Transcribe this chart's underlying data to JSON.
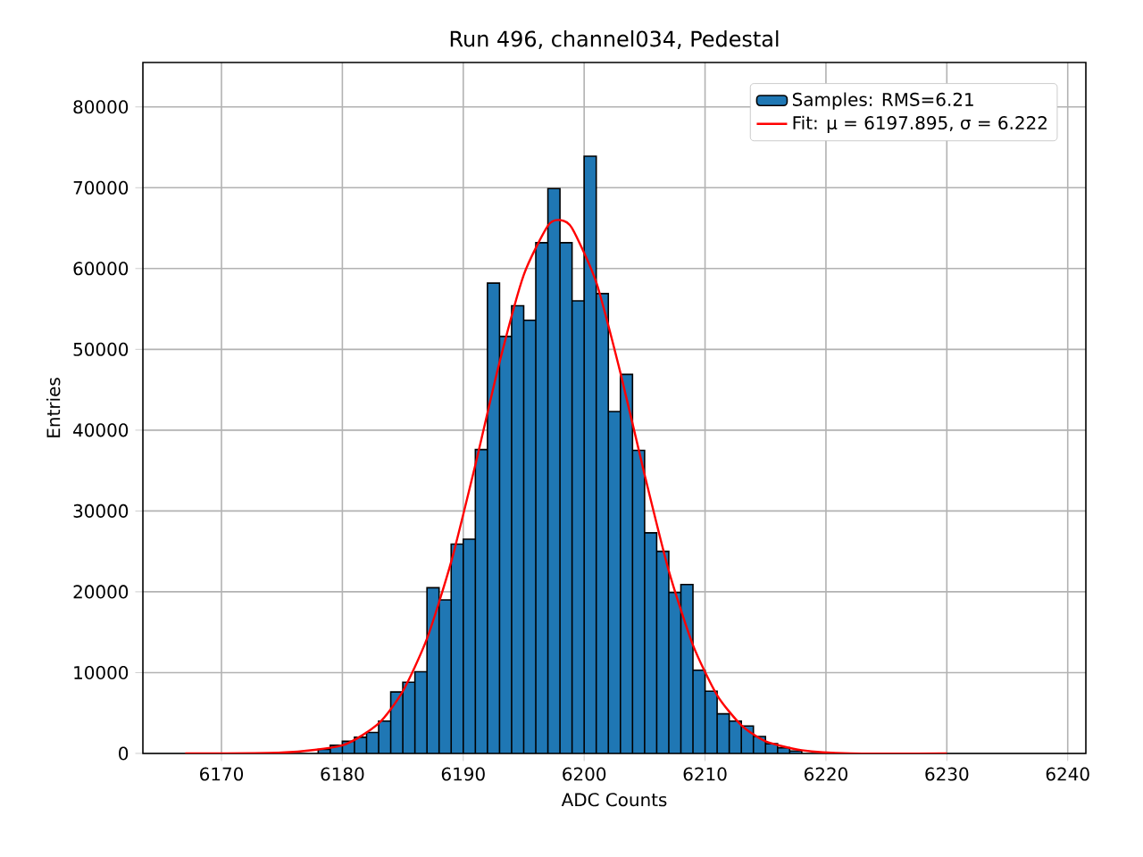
{
  "chart_data": {
    "type": "histogram",
    "title": "Run 496, channel034, Pedestal",
    "xlabel": "ADC Counts",
    "ylabel": "Entries",
    "bins": [
      6178,
      6179,
      6180,
      6181,
      6182,
      6183,
      6184,
      6185,
      6186,
      6187,
      6188,
      6189,
      6190,
      6191,
      6192,
      6193,
      6194,
      6195,
      6196,
      6197,
      6198,
      6199,
      6200,
      6201,
      6202,
      6203,
      6204,
      6205,
      6206,
      6207,
      6208,
      6209,
      6210,
      6211,
      6212,
      6213,
      6214,
      6215,
      6216,
      6217,
      6218
    ],
    "series": [
      {
        "name": "Samples: RMS=6.21",
        "color": "#1f77b4",
        "values": [
          500,
          1000,
          1500,
          2000,
          2600,
          4000,
          7600,
          8800,
          10100,
          20500,
          19000,
          25900,
          26500,
          37600,
          58200,
          51600,
          55400,
          53600,
          63200,
          69900,
          63200,
          56000,
          73900,
          56900,
          42300,
          46900,
          37500,
          27300,
          25000,
          19900,
          20900,
          10300,
          7700,
          4900,
          4000,
          3400,
          2100,
          1200,
          700,
          300
        ]
      },
      {
        "name": "Fit: μ = 6197.895, σ = 6.222",
        "type": "line",
        "color": "#ff0000",
        "x": [
          6167,
          6175,
          6180,
          6183,
          6185,
          6187,
          6189,
          6191,
          6193,
          6195,
          6197,
          6198,
          6199,
          6201,
          6203,
          6205,
          6207,
          6209,
          6211,
          6213,
          6215,
          6218,
          6222,
          6230
        ],
        "values": [
          0,
          100,
          1000,
          3700,
          7700,
          14200,
          23700,
          35700,
          48400,
          59200,
          65300,
          66000,
          65000,
          58300,
          47100,
          34500,
          22600,
          13400,
          7200,
          3500,
          1500,
          400,
          0,
          0
        ]
      }
    ],
    "xlim": [
      6163.5,
      6241.5
    ],
    "ylim": [
      0,
      85500
    ],
    "xticks": [
      6170,
      6180,
      6190,
      6200,
      6210,
      6220,
      6230,
      6240
    ],
    "yticks": [
      0,
      10000,
      20000,
      30000,
      40000,
      50000,
      60000,
      70000,
      80000
    ],
    "grid": true,
    "legend": "top right"
  }
}
